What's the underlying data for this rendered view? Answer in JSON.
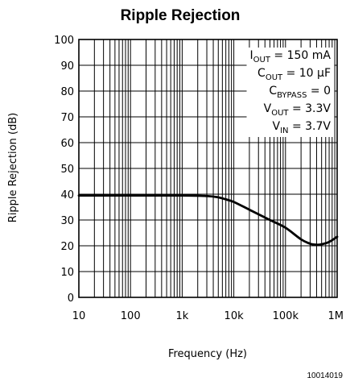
{
  "chart_data": {
    "type": "line",
    "title": "Ripple Rejection",
    "xlabel": "Frequency (Hz)",
    "ylabel": "Ripple Rejection (dB)",
    "xscale": "log",
    "xlim": [
      10,
      1000000
    ],
    "ylim": [
      0,
      100
    ],
    "x_tick_labels": [
      "10",
      "100",
      "1k",
      "10k",
      "100k",
      "1M"
    ],
    "x_tick_values": [
      10,
      100,
      1000,
      10000,
      100000,
      1000000
    ],
    "y_tick_values": [
      0,
      10,
      20,
      30,
      40,
      50,
      60,
      70,
      80,
      90,
      100
    ],
    "grid": true,
    "series": [
      {
        "x": [
          10,
          100,
          1000,
          3000,
          5000,
          7000,
          10000,
          20000,
          50000,
          100000,
          200000,
          300000,
          400000,
          500000,
          700000,
          1000000
        ],
        "y": [
          39.5,
          39.5,
          39.5,
          39.3,
          38.8,
          38,
          37,
          34,
          30,
          27,
          22.5,
          20.8,
          20.4,
          20.6,
          21.5,
          23.5
        ]
      }
    ],
    "annotations": [
      {
        "main": "I",
        "sub": "OUT",
        "rest": " = 150 mA"
      },
      {
        "main": "C",
        "sub": "OUT",
        "rest": " = 10 μF"
      },
      {
        "main": "C",
        "sub": "BYPASS",
        "rest": " = 0"
      },
      {
        "main": "V",
        "sub": "OUT",
        "rest": " = 3.3V"
      },
      {
        "main": "V",
        "sub": "IN",
        "rest": " = 3.7V"
      }
    ]
  },
  "footnote": "10014019"
}
